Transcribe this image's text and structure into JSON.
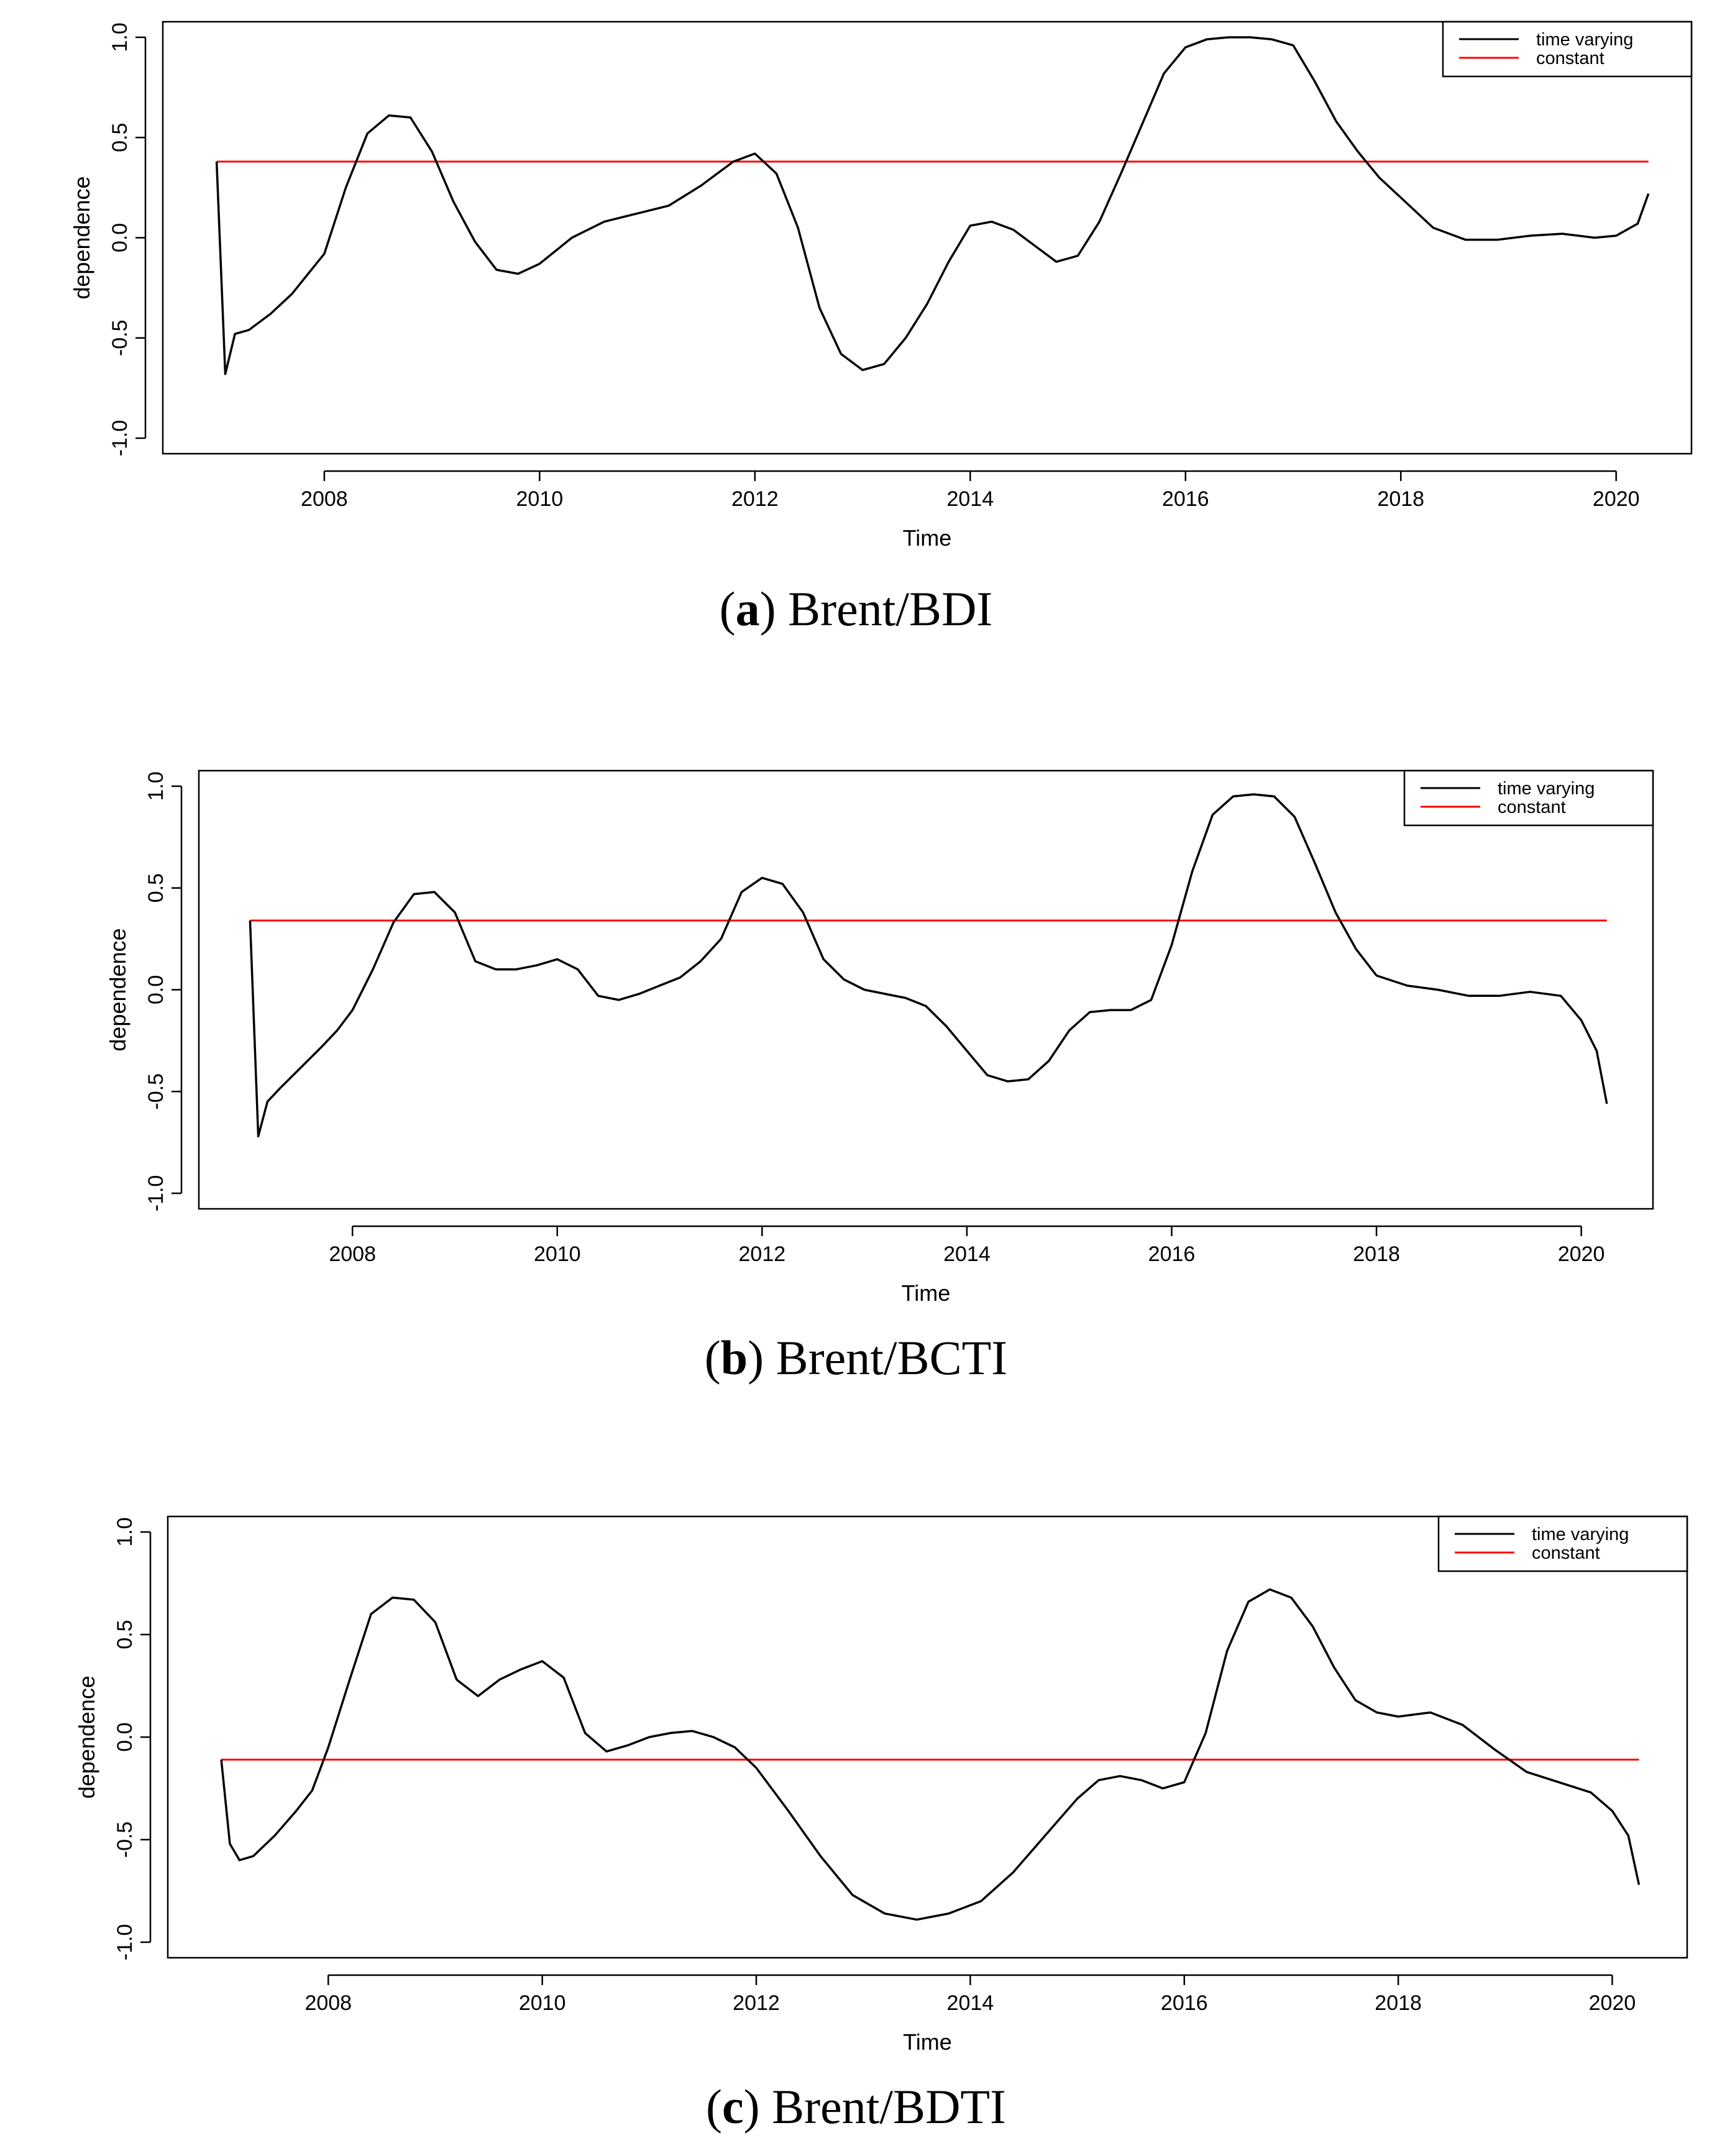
{
  "colors": {
    "time_varying": "#000000",
    "constant": "#ff0000"
  },
  "chart_data": [
    {
      "type": "line",
      "caption": {
        "letter": "a",
        "text": "Brent/BDI"
      },
      "xlabel": "Time",
      "ylabel": "dependence",
      "xlim": [
        2006.5,
        2020.7
      ],
      "ylim": [
        -1.0,
        1.0
      ],
      "xticks": [
        "2008",
        "2010",
        "2012",
        "2014",
        "2016",
        "2018",
        "2020"
      ],
      "yticks": [
        "-1.0",
        "-0.5",
        "0.0",
        "0.5",
        "1.0"
      ],
      "legend": {
        "position": "top-right",
        "entries": [
          "time varying",
          "constant"
        ]
      },
      "constant": 0.38,
      "series": [
        {
          "name": "time varying",
          "x": [
            2007.0,
            2007.08,
            2007.17,
            2007.3,
            2007.5,
            2007.7,
            2007.85,
            2008.0,
            2008.2,
            2008.4,
            2008.6,
            2008.8,
            2009.0,
            2009.2,
            2009.4,
            2009.6,
            2009.8,
            2010.0,
            2010.3,
            2010.6,
            2010.9,
            2011.2,
            2011.5,
            2011.8,
            2012.0,
            2012.2,
            2012.4,
            2012.6,
            2012.8,
            2013.0,
            2013.2,
            2013.4,
            2013.6,
            2013.8,
            2014.0,
            2014.2,
            2014.4,
            2014.6,
            2014.8,
            2015.0,
            2015.2,
            2015.4,
            2015.6,
            2015.8,
            2016.0,
            2016.2,
            2016.4,
            2016.6,
            2016.8,
            2017.0,
            2017.2,
            2017.4,
            2017.6,
            2017.8,
            2018.0,
            2018.3,
            2018.6,
            2018.9,
            2019.2,
            2019.5,
            2019.8,
            2020.0,
            2020.2,
            2020.3
          ],
          "y": [
            0.38,
            -0.68,
            -0.48,
            -0.46,
            -0.38,
            -0.28,
            -0.18,
            -0.08,
            0.25,
            0.52,
            0.61,
            0.6,
            0.43,
            0.18,
            -0.02,
            -0.16,
            -0.18,
            -0.13,
            0.0,
            0.08,
            0.12,
            0.16,
            0.26,
            0.38,
            0.42,
            0.32,
            0.05,
            -0.35,
            -0.58,
            -0.66,
            -0.63,
            -0.5,
            -0.33,
            -0.12,
            0.06,
            0.08,
            0.04,
            -0.04,
            -0.12,
            -0.09,
            0.08,
            0.32,
            0.57,
            0.82,
            0.95,
            0.99,
            1.0,
            1.0,
            0.99,
            0.96,
            0.78,
            0.58,
            0.43,
            0.3,
            0.2,
            0.05,
            -0.01,
            -0.01,
            0.01,
            0.02,
            0.0,
            0.01,
            0.07,
            0.22
          ]
        }
      ]
    },
    {
      "type": "line",
      "caption": {
        "letter": "b",
        "text": "Brent/BCTI"
      },
      "xlabel": "Time",
      "ylabel": "dependence",
      "xlim": [
        2006.5,
        2020.7
      ],
      "ylim": [
        -1.0,
        1.0
      ],
      "xticks": [
        "2008",
        "2010",
        "2012",
        "2014",
        "2016",
        "2018",
        "2020"
      ],
      "yticks": [
        "-1.0",
        "-0.5",
        "0.0",
        "0.5",
        "1.0"
      ],
      "legend": {
        "position": "top-right",
        "entries": [
          "time varying",
          "constant"
        ]
      },
      "constant": 0.34,
      "series": [
        {
          "name": "time varying",
          "x": [
            2007.0,
            2007.08,
            2007.17,
            2007.3,
            2007.5,
            2007.7,
            2007.85,
            2008.0,
            2008.2,
            2008.4,
            2008.6,
            2008.8,
            2009.0,
            2009.2,
            2009.4,
            2009.6,
            2009.8,
            2010.0,
            2010.2,
            2010.4,
            2010.6,
            2010.8,
            2011.0,
            2011.2,
            2011.4,
            2011.6,
            2011.8,
            2012.0,
            2012.2,
            2012.4,
            2012.6,
            2012.8,
            2013.0,
            2013.2,
            2013.4,
            2013.6,
            2013.8,
            2014.0,
            2014.2,
            2014.4,
            2014.6,
            2014.8,
            2015.0,
            2015.2,
            2015.4,
            2015.6,
            2015.8,
            2016.0,
            2016.2,
            2016.4,
            2016.6,
            2016.8,
            2017.0,
            2017.2,
            2017.4,
            2017.6,
            2017.8,
            2018.0,
            2018.3,
            2018.6,
            2018.9,
            2019.2,
            2019.5,
            2019.8,
            2020.0,
            2020.15,
            2020.25
          ],
          "y": [
            0.34,
            -0.72,
            -0.55,
            -0.48,
            -0.38,
            -0.28,
            -0.2,
            -0.1,
            0.1,
            0.33,
            0.47,
            0.48,
            0.38,
            0.14,
            0.1,
            0.1,
            0.12,
            0.15,
            0.1,
            -0.03,
            -0.05,
            -0.02,
            0.02,
            0.06,
            0.14,
            0.25,
            0.48,
            0.55,
            0.52,
            0.38,
            0.15,
            0.05,
            0.0,
            -0.02,
            -0.04,
            -0.08,
            -0.18,
            -0.3,
            -0.42,
            -0.45,
            -0.44,
            -0.35,
            -0.2,
            -0.11,
            -0.1,
            -0.1,
            -0.05,
            0.22,
            0.58,
            0.86,
            0.95,
            0.96,
            0.95,
            0.85,
            0.62,
            0.38,
            0.2,
            0.07,
            0.02,
            0.0,
            -0.03,
            -0.03,
            -0.01,
            -0.03,
            -0.15,
            -0.3,
            -0.56
          ]
        }
      ]
    },
    {
      "type": "line",
      "caption": {
        "letter": "c",
        "text": "Brent/BDTI"
      },
      "xlabel": "Time",
      "ylabel": "dependence",
      "xlim": [
        2006.5,
        2020.7
      ],
      "ylim": [
        -1.0,
        1.0
      ],
      "xticks": [
        "2008",
        "2010",
        "2012",
        "2014",
        "2016",
        "2018",
        "2020"
      ],
      "yticks": [
        "-1.0",
        "-0.5",
        "0.0",
        "0.5",
        "1.0"
      ],
      "legend": {
        "position": "top-right",
        "entries": [
          "time varying",
          "constant"
        ]
      },
      "constant": -0.11,
      "series": [
        {
          "name": "time varying",
          "x": [
            2007.0,
            2007.08,
            2007.17,
            2007.3,
            2007.5,
            2007.7,
            2007.85,
            2008.0,
            2008.2,
            2008.4,
            2008.6,
            2008.8,
            2009.0,
            2009.2,
            2009.4,
            2009.6,
            2009.8,
            2010.0,
            2010.2,
            2010.4,
            2010.6,
            2010.8,
            2011.0,
            2011.2,
            2011.4,
            2011.6,
            2011.8,
            2012.0,
            2012.3,
            2012.6,
            2012.9,
            2013.2,
            2013.5,
            2013.8,
            2014.1,
            2014.4,
            2014.7,
            2015.0,
            2015.2,
            2015.4,
            2015.6,
            2015.8,
            2016.0,
            2016.2,
            2016.4,
            2016.6,
            2016.8,
            2017.0,
            2017.2,
            2017.4,
            2017.6,
            2017.8,
            2018.0,
            2018.3,
            2018.6,
            2018.9,
            2019.2,
            2019.5,
            2019.8,
            2020.0,
            2020.15,
            2020.25
          ],
          "y": [
            -0.11,
            -0.52,
            -0.6,
            -0.58,
            -0.48,
            -0.36,
            -0.26,
            -0.05,
            0.28,
            0.6,
            0.68,
            0.67,
            0.56,
            0.28,
            0.2,
            0.28,
            0.33,
            0.37,
            0.29,
            0.02,
            -0.07,
            -0.04,
            0.0,
            0.02,
            0.03,
            0.0,
            -0.05,
            -0.15,
            -0.36,
            -0.58,
            -0.77,
            -0.86,
            -0.89,
            -0.86,
            -0.8,
            -0.66,
            -0.48,
            -0.3,
            -0.21,
            -0.19,
            -0.21,
            -0.25,
            -0.22,
            0.02,
            0.42,
            0.66,
            0.72,
            0.68,
            0.54,
            0.34,
            0.18,
            0.12,
            0.1,
            0.12,
            0.06,
            -0.06,
            -0.17,
            -0.22,
            -0.27,
            -0.36,
            -0.48,
            -0.72
          ]
        }
      ]
    }
  ]
}
